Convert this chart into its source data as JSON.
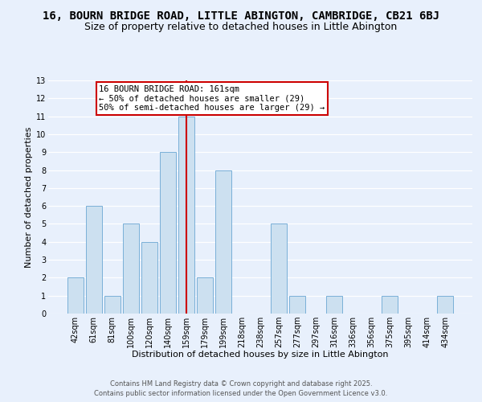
{
  "title": "16, BOURN BRIDGE ROAD, LITTLE ABINGTON, CAMBRIDGE, CB21 6BJ",
  "subtitle": "Size of property relative to detached houses in Little Abington",
  "xlabel": "Distribution of detached houses by size in Little Abington",
  "ylabel": "Number of detached properties",
  "bar_labels": [
    "42sqm",
    "61sqm",
    "81sqm",
    "100sqm",
    "120sqm",
    "140sqm",
    "159sqm",
    "179sqm",
    "199sqm",
    "218sqm",
    "238sqm",
    "257sqm",
    "277sqm",
    "297sqm",
    "316sqm",
    "336sqm",
    "356sqm",
    "375sqm",
    "395sqm",
    "414sqm",
    "434sqm"
  ],
  "bar_heights": [
    2,
    6,
    1,
    5,
    4,
    9,
    11,
    2,
    8,
    0,
    0,
    5,
    1,
    0,
    1,
    0,
    0,
    1,
    0,
    0,
    1
  ],
  "bar_color": "#cce0f0",
  "bar_edge_color": "#7ab0d8",
  "highlight_index": 6,
  "highlight_line_color": "#cc0000",
  "ylim": [
    0,
    13
  ],
  "yticks": [
    0,
    1,
    2,
    3,
    4,
    5,
    6,
    7,
    8,
    9,
    10,
    11,
    12,
    13
  ],
  "annotation_text": "16 BOURN BRIDGE ROAD: 161sqm\n← 50% of detached houses are smaller (29)\n50% of semi-detached houses are larger (29) →",
  "annotation_box_color": "#ffffff",
  "annotation_box_edge": "#cc0000",
  "footer_line1": "Contains HM Land Registry data © Crown copyright and database right 2025.",
  "footer_line2": "Contains public sector information licensed under the Open Government Licence v3.0.",
  "background_color": "#e8f0fc",
  "grid_color": "#ffffff",
  "title_fontsize": 10,
  "subtitle_fontsize": 9,
  "axis_label_fontsize": 8,
  "tick_fontsize": 7,
  "annotation_fontsize": 7.5,
  "footer_fontsize": 6
}
